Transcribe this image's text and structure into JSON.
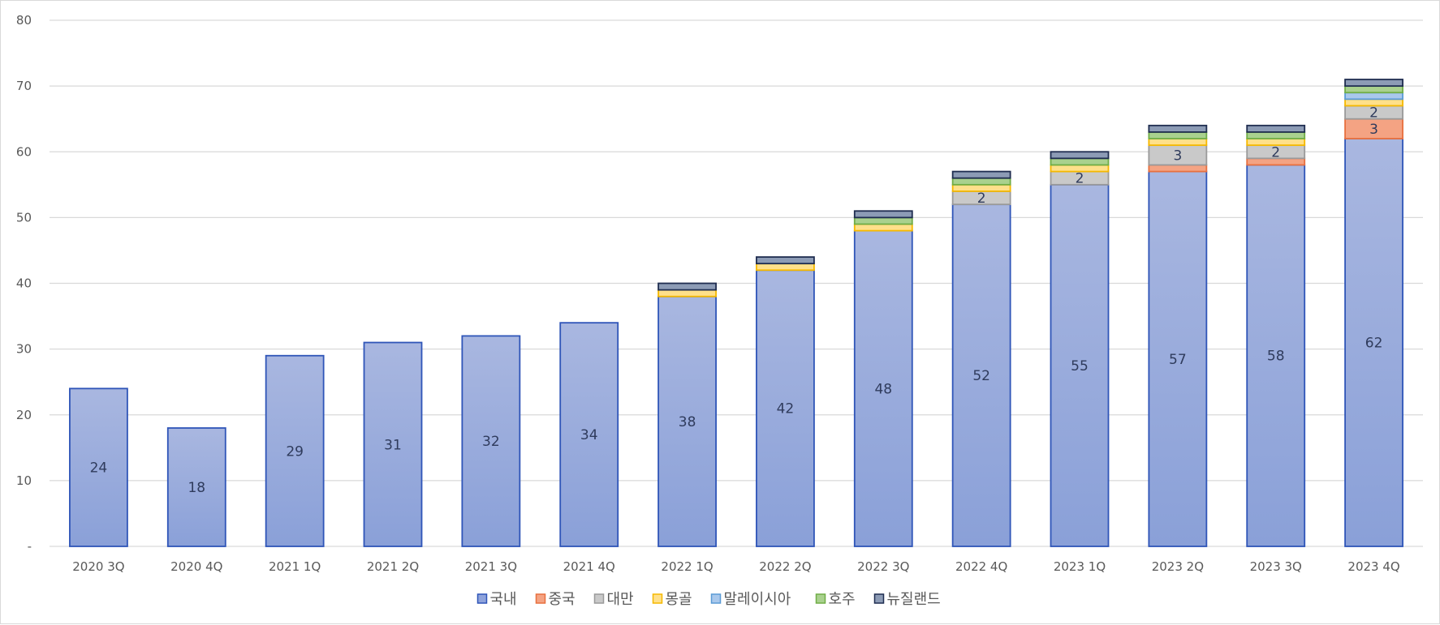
{
  "chart_data": {
    "type": "bar",
    "stacked": true,
    "categories": [
      "2020 3Q",
      "2020 4Q",
      "2021 1Q",
      "2021 2Q",
      "2021 3Q",
      "2021 4Q",
      "2022 1Q",
      "2022 2Q",
      "2022 3Q",
      "2022 4Q",
      "2023 1Q",
      "2023 2Q",
      "2023 3Q",
      "2023 4Q"
    ],
    "ylim": [
      0,
      80
    ],
    "yticks": [
      0,
      10,
      20,
      30,
      40,
      50,
      60,
      70,
      80
    ],
    "ytick_labels": [
      "-",
      "10",
      "20",
      "30",
      "40",
      "50",
      "60",
      "70",
      "80"
    ],
    "grid": true,
    "legend_position": "bottom",
    "series": [
      {
        "name": "국내",
        "color": "#8fa3db",
        "stroke": "#2f55b8",
        "values": [
          24,
          18,
          29,
          31,
          32,
          34,
          38,
          42,
          48,
          52,
          55,
          57,
          58,
          62
        ]
      },
      {
        "name": "중국",
        "color": "#f4a383",
        "stroke": "#e8703f",
        "values": [
          0,
          0,
          0,
          0,
          0,
          0,
          0,
          0,
          0,
          0,
          0,
          1,
          1,
          3
        ]
      },
      {
        "name": "대만",
        "color": "#c9c9c9",
        "stroke": "#9a9a9a",
        "values": [
          0,
          0,
          0,
          0,
          0,
          0,
          0,
          0,
          0,
          2,
          2,
          3,
          2,
          2
        ]
      },
      {
        "name": "몽골",
        "color": "#ffe08a",
        "stroke": "#f5b800",
        "values": [
          0,
          0,
          0,
          0,
          0,
          0,
          1,
          1,
          1,
          1,
          1,
          1,
          1,
          1
        ]
      },
      {
        "name": "말레이시아",
        "color": "#a9c8ec",
        "stroke": "#5b9bd5",
        "values": [
          0,
          0,
          0,
          0,
          0,
          0,
          0,
          0,
          0,
          0,
          0,
          0,
          0,
          1
        ]
      },
      {
        "name": "호주",
        "color": "#a9d18e",
        "stroke": "#70ad47",
        "values": [
          0,
          0,
          0,
          0,
          0,
          0,
          0,
          0,
          1,
          1,
          1,
          1,
          1,
          1
        ]
      },
      {
        "name": "뉴질랜드",
        "color": "#8c9bb5",
        "stroke": "#1f2d50",
        "values": [
          0,
          0,
          0,
          0,
          0,
          0,
          1,
          1,
          1,
          1,
          1,
          1,
          1,
          1
        ]
      }
    ],
    "data_labels": [
      {
        "series": 0,
        "category": 0,
        "text": "24"
      },
      {
        "series": 0,
        "category": 1,
        "text": "18"
      },
      {
        "series": 0,
        "category": 2,
        "text": "29"
      },
      {
        "series": 0,
        "category": 3,
        "text": "31"
      },
      {
        "series": 0,
        "category": 4,
        "text": "32"
      },
      {
        "series": 0,
        "category": 5,
        "text": "34"
      },
      {
        "series": 0,
        "category": 6,
        "text": "38"
      },
      {
        "series": 0,
        "category": 7,
        "text": "42"
      },
      {
        "series": 0,
        "category": 8,
        "text": "48"
      },
      {
        "series": 0,
        "category": 9,
        "text": "52"
      },
      {
        "series": 0,
        "category": 10,
        "text": "55"
      },
      {
        "series": 0,
        "category": 11,
        "text": "57"
      },
      {
        "series": 0,
        "category": 12,
        "text": "58"
      },
      {
        "series": 0,
        "category": 13,
        "text": "62"
      },
      {
        "series": 2,
        "category": 9,
        "text": "2"
      },
      {
        "series": 2,
        "category": 10,
        "text": "2"
      },
      {
        "series": 2,
        "category": 11,
        "text": "3"
      },
      {
        "series": 2,
        "category": 12,
        "text": "2"
      },
      {
        "series": 1,
        "category": 13,
        "text": "3"
      },
      {
        "series": 2,
        "category": 13,
        "text": "2"
      }
    ]
  }
}
